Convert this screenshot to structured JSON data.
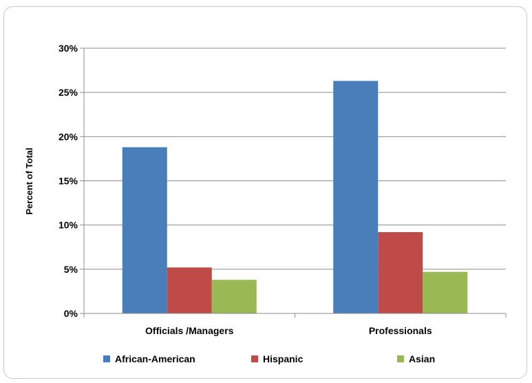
{
  "chart_data": {
    "type": "bar",
    "title": "",
    "xlabel": "",
    "ylabel": "Percent of Total",
    "categories": [
      "Officials /Managers",
      "Professionals"
    ],
    "series": [
      {
        "name": "African-American",
        "values": [
          18.8,
          26.3
        ],
        "color": "#4a7ebb"
      },
      {
        "name": "Hispanic",
        "values": [
          5.2,
          9.2
        ],
        "color": "#be4b48"
      },
      {
        "name": "Asian",
        "values": [
          3.8,
          4.7
        ],
        "color": "#98b954"
      }
    ],
    "ylim": [
      0,
      30
    ],
    "yticks": [
      0,
      5,
      10,
      15,
      20,
      25,
      30
    ],
    "ytick_labels": [
      "0%",
      "5%",
      "10%",
      "15%",
      "20%",
      "25%",
      "30%"
    ],
    "grid": true,
    "legend_position": "bottom"
  }
}
